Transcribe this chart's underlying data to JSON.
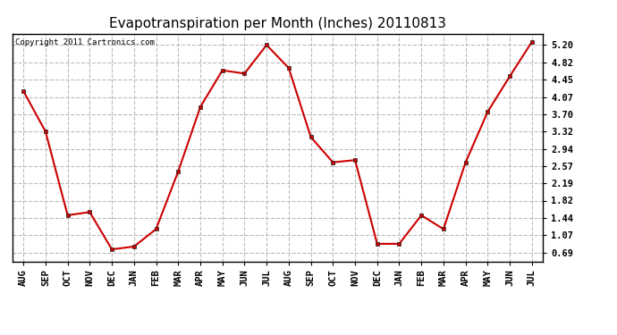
{
  "title": "Evapotranspiration per Month (Inches) 20110813",
  "copyright_text": "Copyright 2011 Cartronics.com",
  "months": [
    "AUG",
    "SEP",
    "OCT",
    "NOV",
    "DEC",
    "JAN",
    "FEB",
    "MAR",
    "APR",
    "MAY",
    "JUN",
    "JUL",
    "AUG",
    "SEP",
    "OCT",
    "NOV",
    "DEC",
    "JAN",
    "FEB",
    "MAR",
    "APR",
    "MAY",
    "JUN",
    "JUL"
  ],
  "values": [
    4.2,
    3.32,
    1.5,
    1.57,
    0.76,
    0.82,
    1.2,
    2.45,
    3.85,
    4.65,
    4.58,
    5.2,
    4.7,
    3.2,
    2.65,
    2.7,
    0.88,
    0.88,
    1.5,
    1.2,
    2.65,
    3.75,
    4.52,
    5.27
  ],
  "line_color": "#cc0000",
  "marker": "s",
  "marker_size": 3,
  "line_width": 1.5,
  "background_color": "#ffffff",
  "plot_background": "#ffffff",
  "grid_color": "#bbbbbb",
  "grid_style": "--",
  "yticks": [
    0.69,
    1.07,
    1.44,
    1.82,
    2.19,
    2.57,
    2.94,
    3.32,
    3.7,
    4.07,
    4.45,
    4.82,
    5.2
  ],
  "ylim": [
    0.5,
    5.45
  ],
  "title_fontsize": 11,
  "copyright_fontsize": 6.5,
  "tick_fontsize": 7.5
}
